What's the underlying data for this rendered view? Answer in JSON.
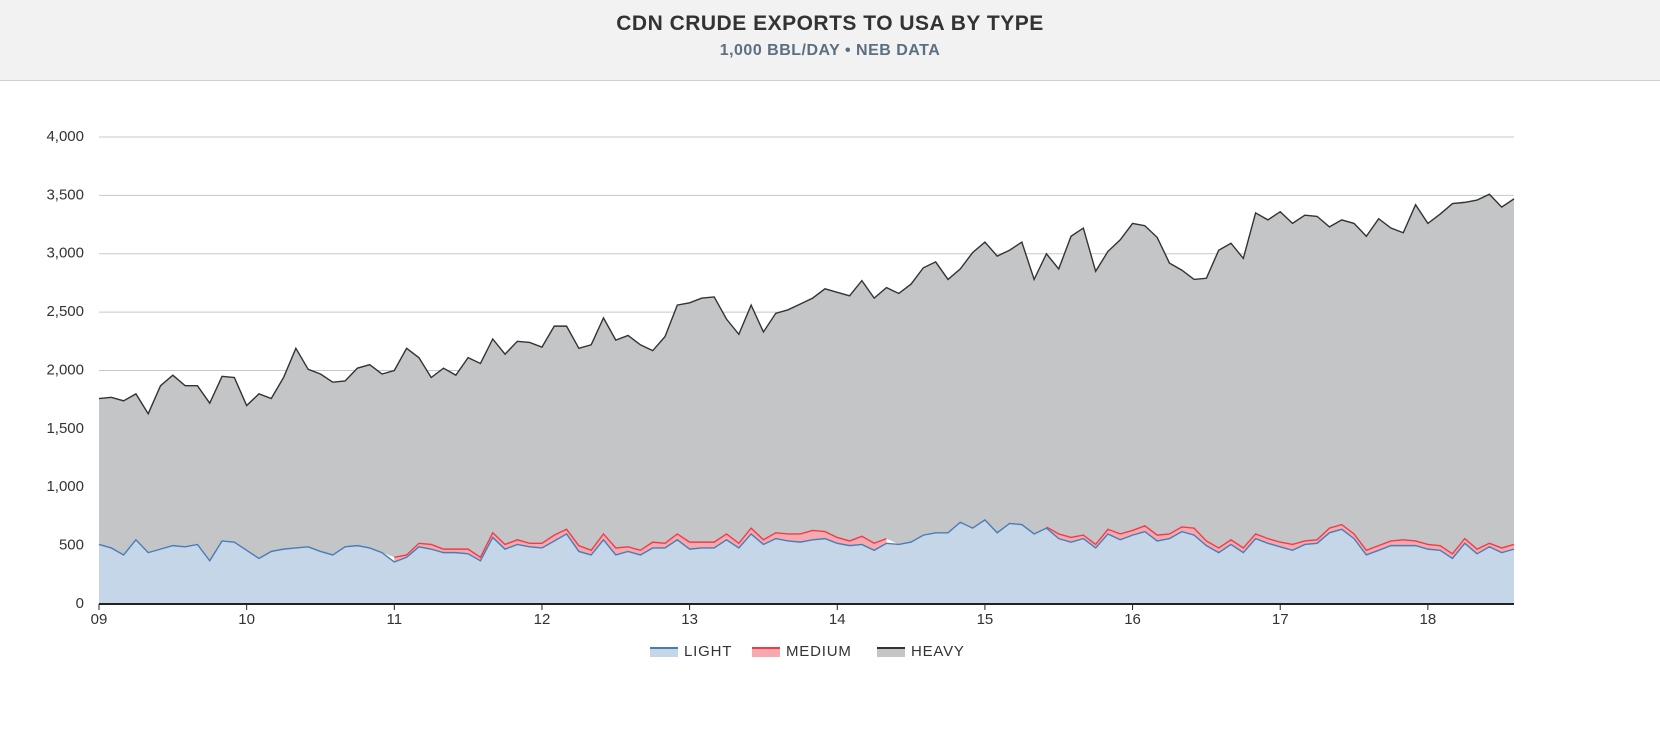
{
  "chart_data": {
    "type": "stacked-area",
    "title": "CDN CRUDE EXPORTS TO USA BY TYPE",
    "subtitle": "1,000 BBL/DAY • NEB DATA",
    "categories": [
      "09",
      null,
      null,
      null,
      null,
      null,
      null,
      null,
      null,
      null,
      null,
      null,
      "10",
      null,
      null,
      null,
      null,
      null,
      null,
      null,
      null,
      null,
      null,
      null,
      "11",
      null,
      null,
      null,
      null,
      null,
      null,
      null,
      null,
      null,
      null,
      null,
      "12",
      null,
      null,
      null,
      null,
      null,
      null,
      null,
      null,
      null,
      null,
      null,
      "13",
      null,
      null,
      null,
      null,
      null,
      null,
      null,
      null,
      null,
      null,
      null,
      "14",
      null,
      null,
      null,
      null,
      null,
      null,
      null,
      null,
      null,
      null,
      null,
      "15",
      null,
      null,
      null,
      null,
      null,
      null,
      null,
      null,
      null,
      null,
      null,
      "16",
      null,
      null,
      null,
      null,
      null,
      null,
      null,
      null,
      null,
      null,
      null,
      "17",
      null,
      null,
      null,
      null,
      null,
      null,
      null,
      null,
      null,
      null,
      null,
      "18",
      null,
      null,
      null,
      null,
      null,
      null,
      null
    ],
    "series": [
      {
        "name": "LIGHT",
        "color": "#4a7db5",
        "fill": "#c5d6e8",
        "values": [
          510,
          480,
          420,
          550,
          440,
          470,
          500,
          490,
          510,
          370,
          540,
          530,
          460,
          390,
          450,
          470,
          480,
          490,
          450,
          420,
          490,
          500,
          480,
          440,
          360,
          400,
          490,
          470,
          440,
          440,
          430,
          370,
          570,
          470,
          510,
          490,
          480,
          540,
          600,
          450,
          420,
          550,
          420,
          450,
          420,
          480,
          480,
          550,
          470,
          480,
          480,
          550,
          480,
          600,
          510,
          560,
          540,
          530,
          550,
          560,
          520,
          500,
          510,
          460,
          520,
          510,
          530,
          590,
          610,
          610,
          700,
          650,
          720,
          610,
          690,
          680,
          600,
          650,
          560,
          530,
          560,
          480,
          600,
          550,
          590,
          620,
          540,
          560,
          620,
          590,
          500,
          440,
          510,
          440,
          560,
          520,
          490,
          460,
          510,
          520,
          610,
          640,
          560,
          420,
          460,
          500,
          500,
          500,
          470,
          460,
          390,
          520,
          430,
          490,
          440,
          470
        ]
      },
      {
        "name": "MEDIUM",
        "color": "#f03c4a",
        "fill": "#f6a9ae",
        "values": [
          null,
          null,
          null,
          null,
          null,
          null,
          null,
          null,
          null,
          null,
          null,
          null,
          null,
          null,
          null,
          null,
          null,
          null,
          null,
          null,
          null,
          null,
          null,
          null,
          40,
          20,
          30,
          40,
          30,
          30,
          40,
          30,
          40,
          40,
          40,
          30,
          40,
          50,
          40,
          50,
          40,
          50,
          60,
          40,
          40,
          50,
          40,
          50,
          60,
          50,
          50,
          50,
          40,
          50,
          40,
          50,
          60,
          70,
          80,
          60,
          50,
          40,
          70,
          60,
          40,
          null,
          null,
          null,
          null,
          null,
          null,
          null,
          null,
          null,
          null,
          null,
          null,
          10,
          40,
          40,
          30,
          30,
          40,
          50,
          40,
          50,
          50,
          40,
          40,
          60,
          40,
          40,
          40,
          40,
          40,
          40,
          40,
          50,
          30,
          30,
          40,
          40,
          40,
          40,
          40,
          40,
          50,
          40,
          40,
          40,
          40,
          40,
          40,
          30,
          40,
          40
        ]
      },
      {
        "name": "HEAVY",
        "color": "#333333",
        "fill": "#c4c5c7",
        "values": [
          1250,
          1290,
          1320,
          1250,
          1190,
          1400,
          1460,
          1380,
          1360,
          1350,
          1410,
          1410,
          1240,
          1410,
          1310,
          1470,
          1710,
          1520,
          1520,
          1480,
          1420,
          1520,
          1570,
          1530,
          1600,
          1770,
          1590,
          1430,
          1550,
          1490,
          1640,
          1660,
          1660,
          1630,
          1700,
          1720,
          1680,
          1790,
          1740,
          1690,
          1760,
          1850,
          1780,
          1810,
          1760,
          1640,
          1770,
          1960,
          2050,
          2090,
          2100,
          1840,
          1790,
          1910,
          1780,
          1880,
          1920,
          1970,
          1990,
          2080,
          2100,
          2100,
          2190,
          2100,
          2150,
          2150,
          2210,
          2290,
          2320,
          2170,
          2170,
          2360,
          2380,
          2370,
          2340,
          2420,
          2180,
          2340,
          2270,
          2580,
          2630,
          2340,
          2380,
          2520,
          2630,
          2570,
          2550,
          2320,
          2200,
          2130,
          2250,
          2550,
          2540,
          2480,
          2750,
          2730,
          2830,
          2750,
          2790,
          2770,
          2580,
          2610,
          2660,
          2690,
          2800,
          2680,
          2630,
          2880,
          2750,
          2840,
          3000,
          2880,
          2990,
          2990,
          2920,
          2960
        ]
      }
    ],
    "ylim": [
      0,
      4000
    ],
    "yticks": [
      0,
      500,
      {
        "value": 1000,
        "label": "1,000"
      },
      {
        "value": 1500,
        "label": "1,500"
      },
      {
        "value": 2000,
        "label": "2,000"
      },
      {
        "value": 2500,
        "label": "2,500"
      },
      {
        "value": 3000,
        "label": "3,000"
      },
      {
        "value": 3500,
        "label": "3,500"
      },
      {
        "value": 4000,
        "label": "4,000"
      }
    ],
    "grid": true,
    "legend": "bottom"
  }
}
